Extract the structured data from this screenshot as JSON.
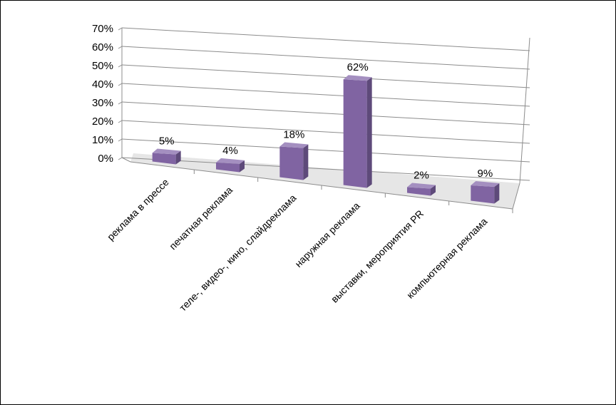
{
  "chart_data": {
    "type": "bar",
    "categories": [
      "реклама в прессе",
      "печатная реклама",
      "теле-, видео-, кино, слайдреклама",
      "наружная реклама",
      "выставки, мероприятия PR",
      "компьютерная реклама"
    ],
    "values": [
      5,
      4,
      18,
      62,
      2,
      9
    ],
    "data_labels": [
      "5%",
      "4%",
      "18%",
      "62%",
      "2%",
      "9%"
    ],
    "y_ticks": [
      "0%",
      "10%",
      "20%",
      "30%",
      "40%",
      "50%",
      "60%",
      "70%"
    ],
    "ylim": [
      0,
      70
    ],
    "grid": true,
    "legend": "none",
    "style": "3d-column",
    "colors": {
      "bar_front": "#8064a2",
      "bar_side": "#5e4a7a",
      "bar_top": "#a48fc0",
      "gridline": "#8c8c8c",
      "floor": "#e6e6e6"
    }
  }
}
